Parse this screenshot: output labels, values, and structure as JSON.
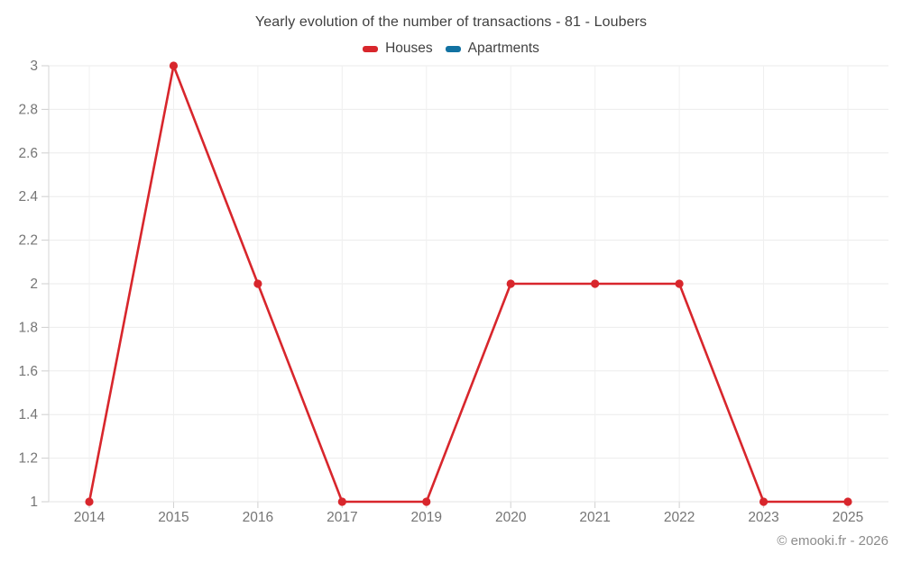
{
  "header": {
    "title": "Yearly evolution of the number of transactions - 81 - Loubers"
  },
  "legend": {
    "items": [
      {
        "label": "Houses",
        "color": "#d8262c"
      },
      {
        "label": "Apartments",
        "color": "#1272a2"
      }
    ]
  },
  "footer": {
    "credit": "© emooki.fr - 2026"
  },
  "chart_data": {
    "type": "line",
    "title": "Yearly evolution of the number of transactions - 81 - Loubers",
    "categories": [
      "2014",
      "2015",
      "2016",
      "2017",
      "2019",
      "2020",
      "2021",
      "2022",
      "2023",
      "2025"
    ],
    "series": [
      {
        "name": "Houses",
        "color": "#d8262c",
        "values": [
          1,
          3,
          2,
          1,
          1,
          2,
          2,
          2,
          1,
          1
        ]
      },
      {
        "name": "Apartments",
        "color": "#1272a2",
        "values": []
      }
    ],
    "xlabel": "",
    "ylabel": "",
    "ylim": [
      1,
      3
    ],
    "yticks": [
      1,
      1.2,
      1.4,
      1.6,
      1.8,
      2,
      2.2,
      2.4,
      2.6,
      2.8,
      3
    ],
    "ytick_labels": [
      "1",
      "1.2",
      "1.4",
      "1.6",
      "1.8",
      "2",
      "2.2",
      "2.4",
      "2.6",
      "2.8",
      "3"
    ],
    "grid": true,
    "legend_position": "top"
  }
}
